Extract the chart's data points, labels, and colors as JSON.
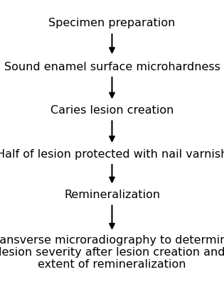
{
  "steps": [
    "Specimen preparation",
    "Sound enamel surface microhardness",
    "Caries lesion creation",
    "Half of lesion protected with nail varnish",
    "Remineralization",
    "Transverse microradiography to determine\nlesion severity after lesion creation and\nextent of remineralization"
  ],
  "background_color": "#ffffff",
  "text_color": "#000000",
  "arrow_color": "#000000",
  "font_size": 11.5,
  "fig_width": 3.15,
  "fig_height": 4.0,
  "dpi": 100
}
